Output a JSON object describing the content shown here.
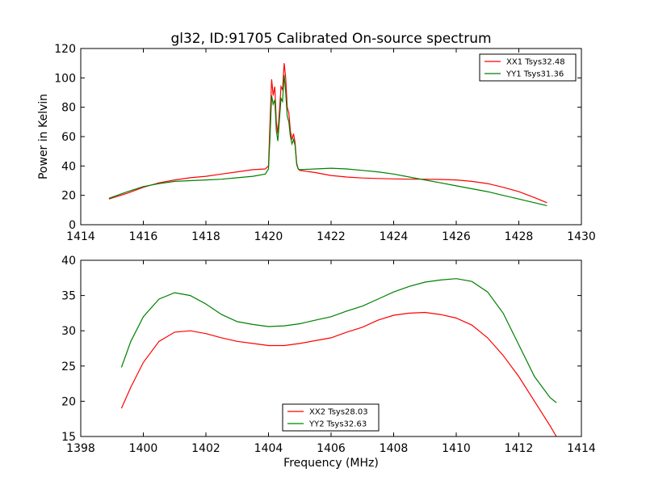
{
  "figure": {
    "title": "gl32, ID:91705 Calibrated On-source spectrum",
    "xlabel": "Frequency (MHz)"
  },
  "chart_data": [
    {
      "type": "line",
      "title": "gl32, ID:91705 Calibrated On-source spectrum",
      "xlabel": "",
      "ylabel": "Power in Kelvin",
      "xlim": [
        1414,
        1430
      ],
      "ylim": [
        0,
        120
      ],
      "xticks": [
        1414,
        1416,
        1418,
        1420,
        1422,
        1424,
        1426,
        1428,
        1430
      ],
      "yticks": [
        0,
        20,
        40,
        60,
        80,
        100,
        120
      ],
      "grid": false,
      "legend": {
        "position": "top-right"
      },
      "series": [
        {
          "name": "XX1 Tsys32.48",
          "color": "#ff0000",
          "x": [
            1414.9,
            1415.5,
            1416.0,
            1416.5,
            1417.0,
            1417.5,
            1418.0,
            1418.5,
            1419.0,
            1419.5,
            1419.9,
            1420.0,
            1420.05,
            1420.1,
            1420.15,
            1420.2,
            1420.25,
            1420.3,
            1420.35,
            1420.4,
            1420.45,
            1420.5,
            1420.55,
            1420.6,
            1420.65,
            1420.7,
            1420.75,
            1420.8,
            1420.85,
            1420.9,
            1420.95,
            1421.0,
            1421.5,
            1422.0,
            1422.5,
            1423.0,
            1423.5,
            1424.0,
            1424.5,
            1425.0,
            1425.5,
            1426.0,
            1426.5,
            1427.0,
            1427.5,
            1428.0,
            1428.5,
            1428.9
          ],
          "y": [
            17.5,
            21.5,
            25.5,
            28.5,
            30.5,
            32.0,
            33.0,
            34.5,
            36.0,
            37.5,
            38.0,
            40.0,
            70.0,
            99.0,
            88.0,
            94.0,
            70.0,
            62.0,
            78.0,
            94.0,
            92.0,
            110.0,
            100.0,
            80.0,
            76.0,
            64.0,
            58.0,
            62.0,
            56.0,
            42.0,
            38.0,
            37.0,
            35.5,
            33.5,
            32.5,
            31.8,
            31.5,
            31.2,
            31.0,
            31.0,
            30.8,
            30.5,
            29.5,
            28.0,
            25.5,
            22.5,
            18.5,
            15.0
          ]
        },
        {
          "name": "YY1 Tsys31.36",
          "color": "#008000",
          "x": [
            1414.9,
            1415.5,
            1416.0,
            1416.5,
            1417.0,
            1417.5,
            1418.0,
            1418.5,
            1419.0,
            1419.5,
            1419.9,
            1420.0,
            1420.05,
            1420.1,
            1420.15,
            1420.2,
            1420.25,
            1420.3,
            1420.35,
            1420.4,
            1420.45,
            1420.5,
            1420.55,
            1420.6,
            1420.65,
            1420.7,
            1420.75,
            1420.8,
            1420.85,
            1420.9,
            1420.95,
            1421.0,
            1421.5,
            1422.0,
            1422.5,
            1423.0,
            1423.5,
            1424.0,
            1424.5,
            1425.0,
            1425.5,
            1426.0,
            1426.5,
            1427.0,
            1427.5,
            1428.0,
            1428.5,
            1428.9
          ],
          "y": [
            18.0,
            22.5,
            26.0,
            28.0,
            29.5,
            30.0,
            30.5,
            31.0,
            32.0,
            33.0,
            34.5,
            38.0,
            60.0,
            88.0,
            82.0,
            85.0,
            64.0,
            57.0,
            72.0,
            86.0,
            84.0,
            102.0,
            90.0,
            74.0,
            70.0,
            60.0,
            55.0,
            58.0,
            54.0,
            41.0,
            38.0,
            37.5,
            38.0,
            38.5,
            38.0,
            37.0,
            36.0,
            34.5,
            32.5,
            30.5,
            28.5,
            26.5,
            24.5,
            22.5,
            20.0,
            17.5,
            15.0,
            13.0
          ]
        }
      ]
    },
    {
      "type": "line",
      "title": "",
      "xlabel": "Frequency (MHz)",
      "ylabel": "",
      "xlim": [
        1398,
        1414
      ],
      "ylim": [
        15,
        40
      ],
      "xticks": [
        1398,
        1400,
        1402,
        1404,
        1406,
        1408,
        1410,
        1412,
        1414
      ],
      "yticks": [
        15,
        20,
        25,
        30,
        35,
        40
      ],
      "grid": false,
      "legend": {
        "position": "bottom-center"
      },
      "series": [
        {
          "name": "XX2 Tsys28.03",
          "color": "#ff0000",
          "x": [
            1399.3,
            1399.6,
            1400.0,
            1400.5,
            1401.0,
            1401.5,
            1402.0,
            1402.5,
            1403.0,
            1403.5,
            1404.0,
            1404.5,
            1405.0,
            1405.5,
            1406.0,
            1406.5,
            1407.0,
            1407.5,
            1408.0,
            1408.5,
            1409.0,
            1409.5,
            1410.0,
            1410.5,
            1411.0,
            1411.5,
            1412.0,
            1412.5,
            1413.0,
            1413.2
          ],
          "y": [
            19.0,
            22.0,
            25.5,
            28.5,
            29.8,
            30.0,
            29.6,
            29.0,
            28.5,
            28.2,
            27.9,
            27.9,
            28.2,
            28.6,
            29.0,
            29.8,
            30.5,
            31.5,
            32.2,
            32.5,
            32.6,
            32.3,
            31.8,
            30.8,
            29.0,
            26.5,
            23.5,
            20.0,
            16.5,
            15.0
          ]
        },
        {
          "name": "YY2 Tsys32.63",
          "color": "#008000",
          "x": [
            1399.3,
            1399.6,
            1400.0,
            1400.5,
            1401.0,
            1401.5,
            1402.0,
            1402.5,
            1403.0,
            1403.5,
            1404.0,
            1404.5,
            1405.0,
            1405.5,
            1406.0,
            1406.5,
            1407.0,
            1407.5,
            1408.0,
            1408.5,
            1409.0,
            1409.5,
            1410.0,
            1410.5,
            1411.0,
            1411.5,
            1412.0,
            1412.5,
            1413.0,
            1413.2
          ],
          "y": [
            24.8,
            28.5,
            32.0,
            34.5,
            35.4,
            35.0,
            33.8,
            32.3,
            31.3,
            30.9,
            30.6,
            30.7,
            31.0,
            31.5,
            32.0,
            32.8,
            33.5,
            34.5,
            35.5,
            36.3,
            36.9,
            37.2,
            37.4,
            37.0,
            35.5,
            32.5,
            28.0,
            23.5,
            20.5,
            19.8
          ]
        }
      ]
    }
  ]
}
